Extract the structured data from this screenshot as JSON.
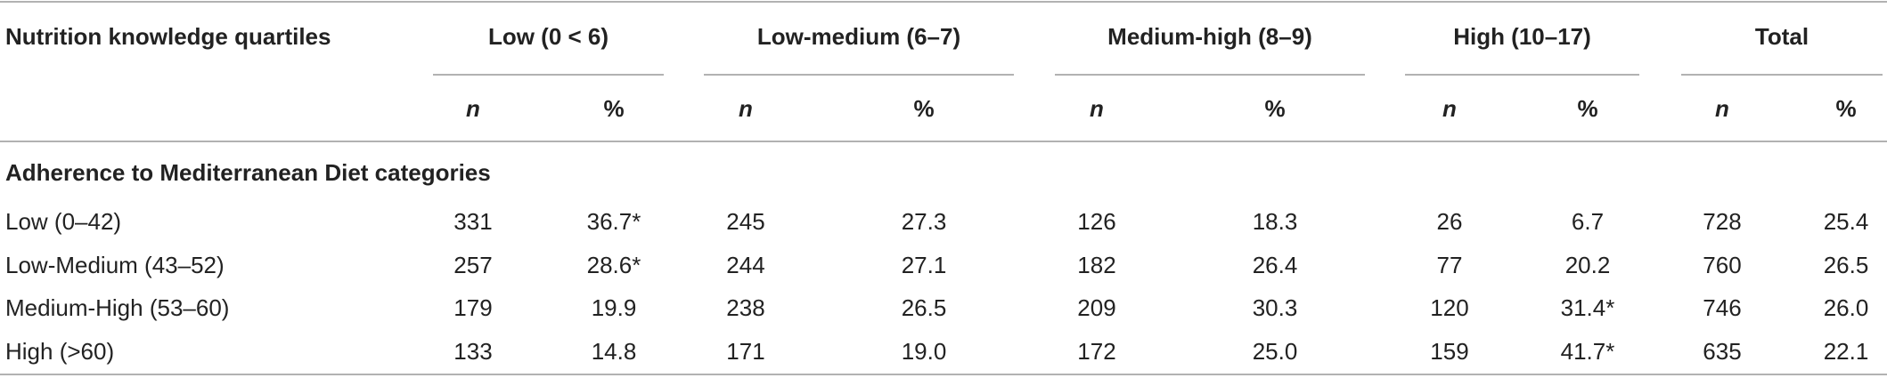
{
  "table": {
    "header": {
      "stub": "Nutrition knowledge quartiles",
      "groups": [
        "Low (0 < 6)",
        "Low-medium (6–7)",
        "Medium-high (8–9)",
        "High (10–17)",
        "Total"
      ]
    },
    "subheader": [
      "n",
      "%",
      "n",
      "%",
      "n",
      "%",
      "n",
      "%",
      "n",
      "%"
    ],
    "section": "Adherence to Mediterranean Diet categories",
    "rows": [
      {
        "label": "Low (0–42)",
        "cells": [
          "331",
          "36.7*",
          "245",
          "27.3",
          "126",
          "18.3",
          "26",
          "6.7",
          "728",
          "25.4"
        ]
      },
      {
        "label": "Low-Medium (43–52)",
        "cells": [
          "257",
          "28.6*",
          "244",
          "27.1",
          "182",
          "26.4",
          "77",
          "20.2",
          "760",
          "26.5"
        ]
      },
      {
        "label": "Medium-High (53–60)",
        "cells": [
          "179",
          "19.9",
          "238",
          "26.5",
          "209",
          "30.3",
          "120",
          "31.4*",
          "746",
          "26.0"
        ]
      },
      {
        "label": "High (>60)",
        "cells": [
          "133",
          "14.8",
          "171",
          "19.0",
          "172",
          "25.0",
          "159",
          "41.7*",
          "635",
          "22.1"
        ]
      }
    ]
  }
}
